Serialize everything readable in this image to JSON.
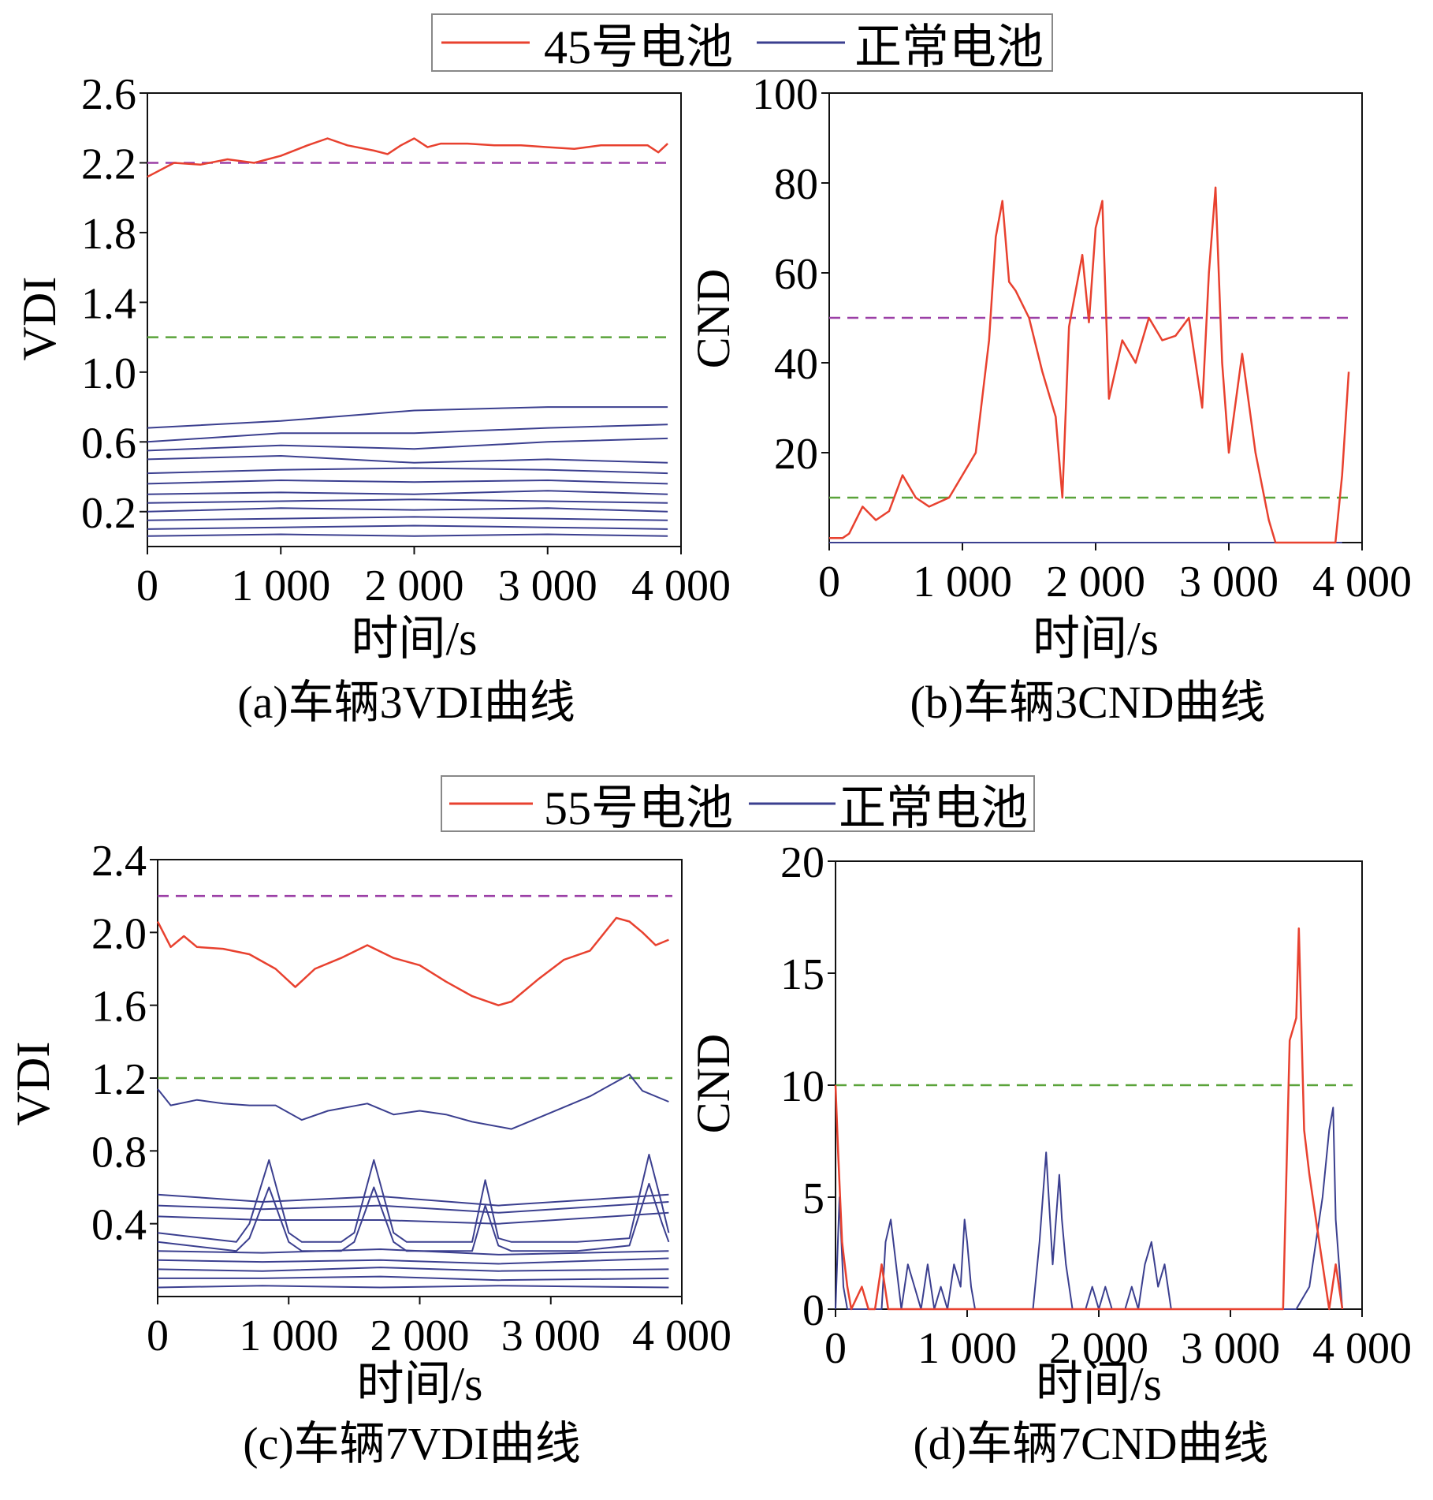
{
  "figure": {
    "legend_top": {
      "red_label": "45号电池",
      "blue_label": "正常电池"
    },
    "legend_bottom": {
      "red_label": "55号电池",
      "blue_label": "正常电池"
    },
    "colors": {
      "abnormal": "#e8412f",
      "normal": "#3b3f8f",
      "upper_threshold": "#9b3fa6",
      "lower_threshold": "#5aa33a",
      "frame": "#111111"
    }
  },
  "chart_data": [
    {
      "id": "a",
      "type": "line",
      "caption": "(a)车辆3VDI曲线",
      "xlabel": "时间/s",
      "ylabel": "VDI",
      "xlim": [
        0,
        4000
      ],
      "ylim": [
        0,
        2.6
      ],
      "xticks": [
        0,
        1000,
        2000,
        3000,
        4000
      ],
      "xtick_labels": [
        "0",
        "1 000",
        "2 000",
        "3 000",
        "4 000"
      ],
      "yticks": [
        0.2,
        0.6,
        1.0,
        1.4,
        1.8,
        2.2,
        2.6
      ],
      "ytick_labels": [
        "0.2",
        "0.6",
        "1.0",
        "1.4",
        "1.8",
        "2.2",
        "2.6"
      ],
      "thresholds": [
        {
          "name": "upper",
          "y": 2.2
        },
        {
          "name": "lower",
          "y": 1.2
        }
      ],
      "series": [
        {
          "name": "45号电池",
          "role": "abnormal",
          "x": [
            0,
            200,
            400,
            600,
            800,
            1000,
            1200,
            1350,
            1500,
            1700,
            1800,
            1900,
            2000,
            2100,
            2200,
            2400,
            2600,
            2800,
            3000,
            3200,
            3400,
            3600,
            3750,
            3830,
            3900
          ],
          "y": [
            2.12,
            2.2,
            2.19,
            2.22,
            2.2,
            2.24,
            2.3,
            2.34,
            2.3,
            2.27,
            2.25,
            2.3,
            2.34,
            2.29,
            2.31,
            2.31,
            2.3,
            2.3,
            2.29,
            2.28,
            2.3,
            2.3,
            2.3,
            2.26,
            2.31
          ]
        },
        {
          "name": "正常电池",
          "role": "normal",
          "x": [
            0,
            1000,
            2000,
            3000,
            3900
          ],
          "y": [
            0.6,
            0.65,
            0.65,
            0.68,
            0.7
          ]
        },
        {
          "name": "正常电池",
          "role": "normal",
          "x": [
            0,
            1000,
            2000,
            3000,
            3900
          ],
          "y": [
            0.68,
            0.72,
            0.78,
            0.8,
            0.8
          ]
        },
        {
          "name": "正常电池",
          "role": "normal",
          "x": [
            0,
            1000,
            2000,
            3000,
            3900
          ],
          "y": [
            0.55,
            0.58,
            0.56,
            0.6,
            0.62
          ]
        },
        {
          "name": "正常电池",
          "role": "normal",
          "x": [
            0,
            1000,
            2000,
            3000,
            3900
          ],
          "y": [
            0.5,
            0.52,
            0.48,
            0.5,
            0.48
          ]
        },
        {
          "name": "正常电池",
          "role": "normal",
          "x": [
            0,
            1000,
            2000,
            3000,
            3900
          ],
          "y": [
            0.42,
            0.44,
            0.45,
            0.44,
            0.42
          ]
        },
        {
          "name": "正常电池",
          "role": "normal",
          "x": [
            0,
            1000,
            2000,
            3000,
            3900
          ],
          "y": [
            0.36,
            0.38,
            0.37,
            0.38,
            0.36
          ]
        },
        {
          "name": "正常电池",
          "role": "normal",
          "x": [
            0,
            1000,
            2000,
            3000,
            3900
          ],
          "y": [
            0.3,
            0.31,
            0.3,
            0.32,
            0.3
          ]
        },
        {
          "name": "正常电池",
          "role": "normal",
          "x": [
            0,
            1000,
            2000,
            3000,
            3900
          ],
          "y": [
            0.25,
            0.26,
            0.27,
            0.26,
            0.25
          ]
        },
        {
          "name": "正常电池",
          "role": "normal",
          "x": [
            0,
            1000,
            2000,
            3000,
            3900
          ],
          "y": [
            0.2,
            0.22,
            0.21,
            0.22,
            0.2
          ]
        },
        {
          "name": "正常电池",
          "role": "normal",
          "x": [
            0,
            1000,
            2000,
            3000,
            3900
          ],
          "y": [
            0.15,
            0.16,
            0.17,
            0.16,
            0.15
          ]
        },
        {
          "name": "正常电池",
          "role": "normal",
          "x": [
            0,
            1000,
            2000,
            3000,
            3900
          ],
          "y": [
            0.1,
            0.11,
            0.12,
            0.11,
            0.1
          ]
        },
        {
          "name": "正常电池",
          "role": "normal",
          "x": [
            0,
            1000,
            2000,
            3000,
            3900
          ],
          "y": [
            0.06,
            0.07,
            0.06,
            0.07,
            0.06
          ]
        }
      ]
    },
    {
      "id": "b",
      "type": "line",
      "caption": "(b)车辆3CND曲线",
      "xlabel": "时间/s",
      "ylabel": "CND",
      "xlim": [
        0,
        4000
      ],
      "ylim": [
        0,
        100
      ],
      "xticks": [
        0,
        1000,
        2000,
        3000,
        4000
      ],
      "xtick_labels": [
        "0",
        "1 000",
        "2 000",
        "3 000",
        "4 000"
      ],
      "yticks": [
        20,
        40,
        60,
        80,
        100
      ],
      "ytick_labels": [
        "20",
        "40",
        "60",
        "80",
        "100"
      ],
      "thresholds": [
        {
          "name": "upper",
          "y": 50
        },
        {
          "name": "lower",
          "y": 10
        }
      ],
      "series": [
        {
          "name": "45号电池",
          "role": "abnormal",
          "x": [
            0,
            100,
            150,
            250,
            350,
            450,
            550,
            650,
            750,
            900,
            1000,
            1100,
            1200,
            1250,
            1300,
            1350,
            1400,
            1500,
            1600,
            1700,
            1750,
            1800,
            1900,
            1950,
            2000,
            2050,
            2100,
            2200,
            2300,
            2400,
            2500,
            2600,
            2700,
            2800,
            2850,
            2900,
            2950,
            3000,
            3100,
            3200,
            3300,
            3350,
            3800,
            3850,
            3900
          ],
          "y": [
            1,
            1,
            2,
            8,
            5,
            7,
            15,
            10,
            8,
            10,
            15,
            20,
            45,
            68,
            76,
            58,
            56,
            50,
            38,
            28,
            10,
            48,
            64,
            49,
            70,
            76,
            32,
            45,
            40,
            50,
            45,
            46,
            50,
            30,
            60,
            79,
            40,
            20,
            42,
            20,
            5,
            0,
            0,
            15,
            38
          ]
        },
        {
          "name": "正常电池",
          "role": "normal",
          "x": [
            0,
            3850
          ],
          "y": [
            0,
            0
          ]
        }
      ]
    },
    {
      "id": "c",
      "type": "line",
      "caption": "(c)车辆7VDI曲线",
      "xlabel": "时间/s",
      "ylabel": "VDI",
      "xlim": [
        0,
        4000
      ],
      "ylim": [
        0,
        2.4
      ],
      "xticks": [
        0,
        1000,
        2000,
        3000,
        4000
      ],
      "xtick_labels": [
        "0",
        "1 000",
        "2 000",
        "3 000",
        "4 000"
      ],
      "yticks": [
        0.4,
        0.8,
        1.2,
        1.6,
        2.0,
        2.4
      ],
      "ytick_labels": [
        "0.4",
        "0.8",
        "1.2",
        "1.6",
        "2.0",
        "2.4"
      ],
      "thresholds": [
        {
          "name": "upper",
          "y": 2.2
        },
        {
          "name": "lower",
          "y": 1.2
        }
      ],
      "series": [
        {
          "name": "55号电池",
          "role": "abnormal",
          "x": [
            0,
            100,
            200,
            300,
            500,
            700,
            900,
            1050,
            1200,
            1400,
            1600,
            1800,
            2000,
            2200,
            2400,
            2600,
            2700,
            2900,
            3100,
            3300,
            3500,
            3600,
            3700,
            3800,
            3900
          ],
          "y": [
            2.06,
            1.92,
            1.98,
            1.92,
            1.91,
            1.88,
            1.8,
            1.7,
            1.8,
            1.86,
            1.93,
            1.86,
            1.82,
            1.73,
            1.65,
            1.6,
            1.62,
            1.74,
            1.85,
            1.9,
            2.08,
            2.06,
            2.0,
            1.93,
            1.96
          ]
        },
        {
          "name": "正常电池",
          "role": "normal",
          "x": [
            0,
            100,
            300,
            500,
            700,
            900,
            1100,
            1300,
            1600,
            1800,
            2000,
            2200,
            2400,
            2700,
            2900,
            3100,
            3300,
            3500,
            3600,
            3700,
            3900
          ],
          "y": [
            1.14,
            1.05,
            1.08,
            1.06,
            1.05,
            1.05,
            0.97,
            1.02,
            1.06,
            1.0,
            1.02,
            1.0,
            0.96,
            0.92,
            0.98,
            1.04,
            1.1,
            1.18,
            1.22,
            1.13,
            1.07
          ]
        },
        {
          "name": "正常电池",
          "role": "normal",
          "x": [
            0,
            800,
            1700,
            2600,
            3900
          ],
          "y": [
            0.56,
            0.52,
            0.55,
            0.5,
            0.56
          ]
        },
        {
          "name": "正常电池",
          "role": "normal",
          "x": [
            0,
            800,
            1700,
            2600,
            3900
          ],
          "y": [
            0.5,
            0.48,
            0.5,
            0.46,
            0.52
          ]
        },
        {
          "name": "正常电池",
          "role": "normal",
          "x": [
            0,
            800,
            1700,
            2600,
            3900
          ],
          "y": [
            0.44,
            0.42,
            0.42,
            0.4,
            0.46
          ]
        },
        {
          "name": "正常电池",
          "role": "normal",
          "x": [
            0,
            600,
            700,
            850,
            1000,
            1100,
            1400,
            1500,
            1650,
            1800,
            1900,
            2200,
            2400,
            2500,
            2600,
            2700,
            3200,
            3600,
            3750,
            3850,
            3900
          ],
          "y": [
            0.35,
            0.3,
            0.4,
            0.75,
            0.35,
            0.3,
            0.3,
            0.35,
            0.75,
            0.35,
            0.3,
            0.3,
            0.3,
            0.64,
            0.32,
            0.3,
            0.3,
            0.32,
            0.78,
            0.5,
            0.35
          ]
        },
        {
          "name": "正常电池",
          "role": "normal",
          "x": [
            0,
            600,
            700,
            850,
            1000,
            1100,
            1400,
            1500,
            1650,
            1800,
            1900,
            2200,
            2400,
            2500,
            2600,
            2700,
            3200,
            3600,
            3750,
            3850,
            3900
          ],
          "y": [
            0.3,
            0.25,
            0.32,
            0.6,
            0.3,
            0.25,
            0.25,
            0.3,
            0.6,
            0.3,
            0.25,
            0.25,
            0.25,
            0.5,
            0.28,
            0.25,
            0.25,
            0.28,
            0.62,
            0.4,
            0.3
          ]
        },
        {
          "name": "正常电池",
          "role": "normal",
          "x": [
            0,
            800,
            1700,
            2600,
            3900
          ],
          "y": [
            0.25,
            0.24,
            0.26,
            0.23,
            0.25
          ]
        },
        {
          "name": "正常电池",
          "role": "normal",
          "x": [
            0,
            800,
            1700,
            2600,
            3900
          ],
          "y": [
            0.2,
            0.19,
            0.2,
            0.18,
            0.21
          ]
        },
        {
          "name": "正常电池",
          "role": "normal",
          "x": [
            0,
            800,
            1700,
            2600,
            3900
          ],
          "y": [
            0.15,
            0.14,
            0.16,
            0.14,
            0.15
          ]
        },
        {
          "name": "正常电池",
          "role": "normal",
          "x": [
            0,
            800,
            1700,
            2600,
            3900
          ],
          "y": [
            0.1,
            0.1,
            0.11,
            0.09,
            0.1
          ]
        },
        {
          "name": "正常电池",
          "role": "normal",
          "x": [
            0,
            800,
            1700,
            2600,
            3900
          ],
          "y": [
            0.05,
            0.06,
            0.05,
            0.06,
            0.05
          ]
        }
      ]
    },
    {
      "id": "d",
      "type": "line",
      "caption": "(d)车辆7CND曲线",
      "xlabel": "时间/s",
      "ylabel": "CND",
      "xlim": [
        0,
        4000
      ],
      "ylim": [
        0,
        20
      ],
      "xticks": [
        0,
        1000,
        2000,
        3000,
        4000
      ],
      "xtick_labels": [
        "0",
        "1 000",
        "2 000",
        "3 000",
        "4 000"
      ],
      "yticks": [
        0,
        5,
        10,
        15,
        20
      ],
      "ytick_labels": [
        "0",
        "5",
        "10",
        "15",
        "20"
      ],
      "thresholds": [
        {
          "name": "lower",
          "y": 10
        }
      ],
      "series": [
        {
          "name": "55号电池",
          "role": "abnormal",
          "x": [
            0,
            20,
            50,
            90,
            120,
            200,
            250,
            300,
            350,
            400,
            450,
            3400,
            3450,
            3500,
            3520,
            3560,
            3600,
            3650,
            3700,
            3750,
            3800,
            3850
          ],
          "y": [
            10,
            7,
            3,
            1,
            0,
            1,
            0,
            0,
            2,
            0,
            0,
            0,
            12,
            13,
            17,
            8,
            6,
            4,
            2,
            0,
            2,
            0
          ]
        },
        {
          "name": "正常电池",
          "role": "normal",
          "x": [
            0,
            30,
            60,
            90,
            120,
            350,
            380,
            420,
            460,
            500,
            550,
            600,
            650,
            700,
            750,
            800,
            850,
            900,
            950,
            980,
            1000,
            1030,
            1060,
            1100,
            1500,
            1550,
            1600,
            1620,
            1650,
            1700,
            1720,
            1750,
            1800,
            1850,
            1900,
            1950,
            2000,
            2050,
            2100,
            2150,
            2200,
            2250,
            2300,
            2350,
            2400,
            2450,
            2500,
            2550,
            2600,
            3400,
            3500,
            3600,
            3650,
            3700,
            3750,
            3780,
            3800,
            3850
          ],
          "y": [
            0,
            5,
            1,
            0,
            0,
            0,
            3,
            4,
            2,
            0,
            2,
            1,
            0,
            2,
            0,
            1,
            0,
            2,
            1,
            4,
            3,
            1,
            0,
            0,
            0,
            3,
            7,
            5,
            2,
            6,
            4,
            2,
            0,
            0,
            0,
            1,
            0,
            1,
            0,
            0,
            0,
            1,
            0,
            2,
            3,
            1,
            2,
            0,
            0,
            0,
            0,
            1,
            3,
            5,
            8,
            9,
            4,
            0
          ]
        }
      ]
    }
  ]
}
